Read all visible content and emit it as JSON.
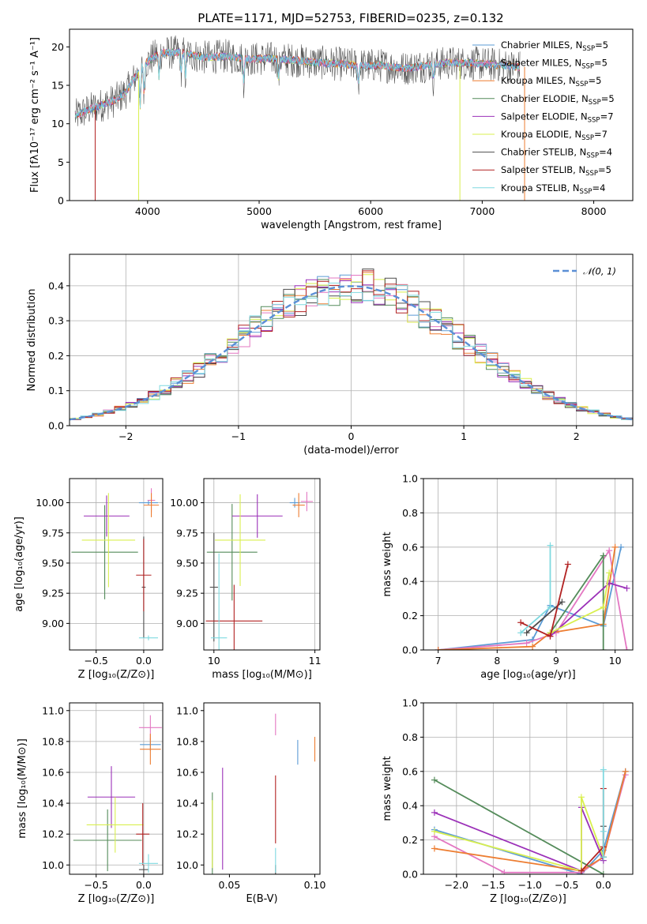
{
  "title": "PLATE=1171, MJD=52753, FIBERID=0235, z=0.132",
  "colors": {
    "chabrier_miles": "#5b9bd5",
    "salpeter_miles": "#e377c2",
    "kroupa_miles": "#ed7d31",
    "chabrier_elodie": "#548b5a",
    "salpeter_elodie": "#9b30b8",
    "kroupa_elodie": "#d9ef4f",
    "chabrier_stelib": "#4d4d4d",
    "salpeter_stelib": "#b22222",
    "kroupa_stelib": "#7fd9e0",
    "normal_curve": "#5b8fd6"
  },
  "chart_data": [
    {
      "id": "spectrum",
      "type": "line",
      "title": "PLATE=1171, MJD=52753, FIBERID=0235, z=0.132",
      "xlabel": "wavelength [Angstrom, rest frame]",
      "ylabel": "Flux [fλ10⁻¹⁷ erg cm⁻² s⁻¹ A⁻¹]",
      "xlim": [
        3300,
        8350
      ],
      "ylim": [
        0,
        22.3
      ],
      "xticks": [
        "4000",
        "5000",
        "6000",
        "7000",
        "8000"
      ],
      "yticks": [
        "0",
        "5",
        "10",
        "15",
        "20"
      ],
      "grid": false,
      "legend_position": "top-right",
      "legend": [
        {
          "main": "Chabrier MILES, N",
          "sub": "SSP",
          "tail": "=5"
        },
        {
          "main": "Salpeter MILES, N",
          "sub": "SSP",
          "tail": "=5"
        },
        {
          "main": "Kroupa MILES, N",
          "sub": "SSP",
          "tail": "=5"
        },
        {
          "main": "Chabrier ELODIE, N",
          "sub": "SSP",
          "tail": "=5"
        },
        {
          "main": "Salpeter ELODIE, N",
          "sub": "SSP",
          "tail": "=7"
        },
        {
          "main": "Kroupa ELODIE, N",
          "sub": "SSP",
          "tail": "=7"
        },
        {
          "main": "Chabrier STELIB, N",
          "sub": "SSP",
          "tail": "=4"
        },
        {
          "main": "Salpeter STELIB, N",
          "sub": "SSP",
          "tail": "=5"
        },
        {
          "main": "Kroupa STELIB, N",
          "sub": "SSP",
          "tail": "=4"
        }
      ],
      "continuum": [
        [
          3350,
          11.0
        ],
        [
          3500,
          12.0
        ],
        [
          3700,
          13.0
        ],
        [
          3800,
          14.0
        ],
        [
          3950,
          17.5
        ],
        [
          4100,
          19.2
        ],
        [
          4300,
          19.3
        ],
        [
          4500,
          18.6
        ],
        [
          4700,
          18.8
        ],
        [
          4900,
          18.4
        ],
        [
          5100,
          18.5
        ],
        [
          5300,
          18.3
        ],
        [
          5500,
          18.0
        ],
        [
          5700,
          17.8
        ],
        [
          5900,
          17.6
        ],
        [
          6100,
          17.6
        ],
        [
          6300,
          17.2
        ],
        [
          6500,
          17.6
        ],
        [
          6700,
          17.9
        ],
        [
          6900,
          17.9
        ],
        [
          7100,
          17.7
        ],
        [
          7300,
          17.4
        ]
      ]
    },
    {
      "id": "residuals",
      "type": "line",
      "xlabel": "(data-model)/error",
      "ylabel": "Normed distribution",
      "xlim": [
        -2.5,
        2.5
      ],
      "ylim": [
        0,
        0.49
      ],
      "xticks": [
        "−2",
        "−1",
        "0",
        "1",
        "2"
      ],
      "yticks": [
        "0.0",
        "0.1",
        "0.2",
        "0.3",
        "0.4"
      ],
      "grid": true,
      "legend_position": "top-right",
      "legend": [
        {
          "main": "𝒩(0, 1)"
        }
      ],
      "bin_width": 0.1,
      "bin_start": -2.5,
      "reference_series": {
        "name": "𝒩(0, 1)",
        "mu": 0,
        "sigma": 1
      }
    },
    {
      "id": "age_vs_z",
      "type": "scatter",
      "xlabel": "Z [log₁₀(Z/Z⊙)]",
      "ylabel": "age  [log₁₀(age/yr)]",
      "xlim": [
        -0.78,
        0.2
      ],
      "ylim": [
        8.78,
        10.2
      ],
      "xticks": [
        "−0.5",
        "0.0"
      ],
      "yticks": [
        "9.00",
        "9.25",
        "9.50",
        "9.75",
        "10.00"
      ],
      "grid": true,
      "points": [
        {
          "model": "chabrier_miles",
          "x": 0.05,
          "y": 10.0,
          "xerr": 0.1,
          "yerr": 0.02
        },
        {
          "model": "salpeter_miles",
          "x": 0.08,
          "y": 10.02,
          "xerr": 0.04,
          "yerr": 0.1
        },
        {
          "model": "kroupa_miles",
          "x": 0.08,
          "y": 9.98,
          "xerr": 0.08,
          "yerr": 0.1
        },
        {
          "model": "chabrier_elodie",
          "x": -0.41,
          "y": 9.59,
          "xerr": 0.35,
          "yerr": 0.39
        },
        {
          "model": "salpeter_elodie",
          "x": -0.39,
          "y": 9.89,
          "xerr": 0.24,
          "yerr": 0.17
        },
        {
          "model": "kroupa_elodie",
          "x": -0.37,
          "y": 9.69,
          "xerr": 0.28,
          "yerr": 0.39
        },
        {
          "model": "chabrier_stelib",
          "x": 0.0,
          "y": 9.3,
          "xerr": 0.02,
          "yerr": 0.42
        },
        {
          "model": "salpeter_stelib",
          "x": 0.0,
          "y": 9.4,
          "xerr": 0.08,
          "yerr": 0.3
        },
        {
          "model": "kroupa_stelib",
          "x": 0.05,
          "y": 8.88,
          "xerr": 0.1,
          "yerr": 0.02
        }
      ]
    },
    {
      "id": "age_vs_mass",
      "type": "scatter",
      "xlabel": "mass [log₁₀(M/M⊙)]",
      "xlim": [
        9.9,
        11.05
      ],
      "ylim": [
        8.78,
        10.2
      ],
      "xticks": [
        "10",
        "11"
      ],
      "yticks": [
        "9.00",
        "9.25",
        "9.50",
        "9.75",
        "10.00"
      ],
      "grid": true,
      "points": [
        {
          "model": "chabrier_miles",
          "x": 10.8,
          "y": 10.0,
          "xerr": 0.05,
          "yerr": 0.04
        },
        {
          "model": "salpeter_miles",
          "x": 10.92,
          "y": 10.01,
          "xerr": 0.06,
          "yerr": 0.08
        },
        {
          "model": "kroupa_miles",
          "x": 10.84,
          "y": 9.98,
          "xerr": 0.06,
          "yerr": 0.1
        },
        {
          "model": "chabrier_elodie",
          "x": 10.18,
          "y": 9.59,
          "xerr": 0.25,
          "yerr": 0.4
        },
        {
          "model": "salpeter_elodie",
          "x": 10.43,
          "y": 9.89,
          "xerr": 0.25,
          "yerr": 0.18
        },
        {
          "model": "kroupa_elodie",
          "x": 10.26,
          "y": 9.69,
          "xerr": 0.25,
          "yerr": 0.38
        },
        {
          "model": "chabrier_stelib",
          "x": 10.0,
          "y": 9.3,
          "xerr": 0.04,
          "yerr": 0.45
        },
        {
          "model": "salpeter_stelib",
          "x": 10.2,
          "y": 9.02,
          "xerr": 0.28,
          "yerr": 0.3
        },
        {
          "model": "kroupa_stelib",
          "x": 10.05,
          "y": 8.88,
          "xerr": 0.08,
          "yerr": 0.7
        }
      ]
    },
    {
      "id": "weight_vs_age",
      "type": "line",
      "xlabel": "age  [log₁₀(age/yr)]",
      "ylabel": "mass weight",
      "xlim": [
        6.75,
        10.3
      ],
      "ylim": [
        0,
        1.0
      ],
      "xticks": [
        "7",
        "8",
        "9",
        "10"
      ],
      "yticks": [
        "0.0",
        "0.2",
        "0.4",
        "0.6",
        "0.8",
        "1.0"
      ],
      "grid": true,
      "series": [
        {
          "model": "chabrier_miles",
          "x": [
            7.0,
            8.6,
            8.9,
            9.8,
            10.1
          ],
          "y": [
            0.0,
            0.06,
            0.26,
            0.14,
            0.6
          ]
        },
        {
          "model": "salpeter_miles",
          "x": [
            7.0,
            8.5,
            9.0,
            9.9,
            10.2
          ],
          "y": [
            0.0,
            0.04,
            0.1,
            0.58,
            0.0
          ]
        },
        {
          "model": "kroupa_miles",
          "x": [
            7.0,
            8.6,
            8.9,
            9.8,
            10.0
          ],
          "y": [
            0.0,
            0.02,
            0.1,
            0.15,
            0.6
          ]
        },
        {
          "model": "chabrier_elodie",
          "x": [
            8.9,
            9.8,
            9.8
          ],
          "y": [
            0.1,
            0.55,
            0.0
          ]
        },
        {
          "model": "salpeter_elodie",
          "x": [
            8.9,
            9.9,
            10.2
          ],
          "y": [
            0.08,
            0.39,
            0.36
          ]
        },
        {
          "model": "kroupa_elodie",
          "x": [
            8.9,
            9.8,
            9.9
          ],
          "y": [
            0.1,
            0.25,
            0.45
          ]
        },
        {
          "model": "chabrier_stelib",
          "x": [
            8.5,
            9.1
          ],
          "y": [
            0.1,
            0.28
          ]
        },
        {
          "model": "salpeter_stelib",
          "x": [
            8.4,
            8.9,
            9.2
          ],
          "y": [
            0.16,
            0.08,
            0.5
          ]
        },
        {
          "model": "kroupa_stelib",
          "x": [
            8.4,
            8.9,
            8.9
          ],
          "y": [
            0.1,
            0.25,
            0.61
          ]
        }
      ]
    },
    {
      "id": "mass_vs_z",
      "type": "scatter",
      "xlabel": "Z [log₁₀(Z/Z⊙)]",
      "ylabel": "mass [log₁₀(M/M⊙)]",
      "xlim": [
        -0.78,
        0.2
      ],
      "ylim": [
        9.94,
        11.05
      ],
      "xticks": [
        "−0.5",
        "0.0"
      ],
      "yticks": [
        "10.0",
        "10.2",
        "10.4",
        "10.6",
        "10.8",
        "11.0"
      ],
      "grid": true,
      "points": [
        {
          "model": "chabrier_miles",
          "x": 0.07,
          "y": 10.78,
          "xerr": 0.11,
          "yerr": 0.04
        },
        {
          "model": "salpeter_miles",
          "x": 0.07,
          "y": 10.89,
          "xerr": 0.12,
          "yerr": 0.08
        },
        {
          "model": "kroupa_miles",
          "x": 0.07,
          "y": 10.75,
          "xerr": 0.11,
          "yerr": 0.1
        },
        {
          "model": "chabrier_elodie",
          "x": -0.38,
          "y": 10.16,
          "xerr": 0.36,
          "yerr": 0.2
        },
        {
          "model": "salpeter_elodie",
          "x": -0.34,
          "y": 10.44,
          "xerr": 0.25,
          "yerr": 0.2
        },
        {
          "model": "kroupa_elodie",
          "x": -0.3,
          "y": 10.26,
          "xerr": 0.3,
          "yerr": 0.18
        },
        {
          "model": "chabrier_stelib",
          "x": 0.0,
          "y": 9.97,
          "xerr": 0.05,
          "yerr": 0.03
        },
        {
          "model": "salpeter_stelib",
          "x": -0.01,
          "y": 10.2,
          "xerr": 0.07,
          "yerr": 0.2
        },
        {
          "model": "kroupa_stelib",
          "x": 0.05,
          "y": 10.01,
          "xerr": 0.1,
          "yerr": 0.06
        }
      ]
    },
    {
      "id": "mass_vs_ebv",
      "type": "scatter",
      "xlabel": "E(B-V)",
      "xlim": [
        0.035,
        0.103
      ],
      "ylim": [
        9.94,
        11.05
      ],
      "xticks": [
        "0.05",
        "0.10"
      ],
      "yticks": [
        "10.0",
        "10.2",
        "10.4",
        "10.6",
        "10.8",
        "11.0"
      ],
      "grid": false,
      "points": [
        {
          "model": "chabrier_miles",
          "x": 0.09,
          "y": 10.73,
          "xerr": 0,
          "yerr": 0.08
        },
        {
          "model": "salpeter_miles",
          "x": 0.077,
          "y": 10.91,
          "xerr": 0,
          "yerr": 0.07
        },
        {
          "model": "kroupa_miles",
          "x": 0.1,
          "y": 10.75,
          "xerr": 0,
          "yerr": 0.08
        },
        {
          "model": "chabrier_elodie",
          "x": 0.04,
          "y": 10.2,
          "xerr": 0,
          "yerr": 0.27
        },
        {
          "model": "salpeter_elodie",
          "x": 0.046,
          "y": 10.3,
          "xerr": 0,
          "yerr": 0.33
        },
        {
          "model": "kroupa_elodie",
          "x": 0.04,
          "y": 10.2,
          "xerr": 0,
          "yerr": 0.22
        },
        {
          "model": "chabrier_stelib",
          "x": 0.077,
          "y": 9.97,
          "xerr": 0,
          "yerr": 0.03
        },
        {
          "model": "salpeter_stelib",
          "x": 0.077,
          "y": 10.36,
          "xerr": 0,
          "yerr": 0.22
        },
        {
          "model": "kroupa_stelib",
          "x": 0.077,
          "y": 10.03,
          "xerr": 0,
          "yerr": 0.08
        }
      ]
    },
    {
      "id": "weight_vs_z",
      "type": "line",
      "xlabel": "Z [log₁₀(Z/Z⊙)]",
      "ylabel": "mass weight",
      "xlim": [
        -2.45,
        0.4
      ],
      "ylim": [
        0,
        1.0
      ],
      "xticks": [
        "−2.0",
        "−1.5",
        "−1.0",
        "−0.5",
        "0.0"
      ],
      "yticks": [
        "0.0",
        "0.2",
        "0.4",
        "0.6",
        "0.8",
        "1.0"
      ],
      "grid": true,
      "series": [
        {
          "model": "chabrier_miles",
          "x": [
            -2.3,
            -0.3,
            0.0,
            0.3
          ],
          "y": [
            0.26,
            0.0,
            0.14,
            0.6
          ]
        },
        {
          "model": "salpeter_miles",
          "x": [
            -2.3,
            -1.35,
            -0.3,
            0.0,
            0.3
          ],
          "y": [
            0.22,
            0.01,
            0.01,
            0.1,
            0.58
          ]
        },
        {
          "model": "kroupa_miles",
          "x": [
            -2.3,
            -0.3,
            0.0,
            0.3
          ],
          "y": [
            0.15,
            0.02,
            0.1,
            0.6
          ]
        },
        {
          "model": "chabrier_elodie",
          "x": [
            -2.3,
            0.0
          ],
          "y": [
            0.55,
            0.0
          ]
        },
        {
          "model": "salpeter_elodie",
          "x": [
            -2.3,
            -0.3,
            -0.3,
            0.0
          ],
          "y": [
            0.36,
            0.02,
            0.39,
            0.08
          ]
        },
        {
          "model": "kroupa_elodie",
          "x": [
            -2.3,
            -0.3,
            -0.3,
            0.0
          ],
          "y": [
            0.25,
            0.02,
            0.45,
            0.1
          ]
        },
        {
          "model": "chabrier_stelib",
          "x": [
            0.0,
            0.0
          ],
          "y": [
            0.1,
            0.28
          ]
        },
        {
          "model": "salpeter_stelib",
          "x": [
            -0.3,
            0.0,
            0.0
          ],
          "y": [
            0.02,
            0.16,
            0.5
          ]
        },
        {
          "model": "kroupa_stelib",
          "x": [
            0.0,
            0.0,
            0.0
          ],
          "y": [
            0.1,
            0.25,
            0.61
          ]
        }
      ]
    }
  ]
}
